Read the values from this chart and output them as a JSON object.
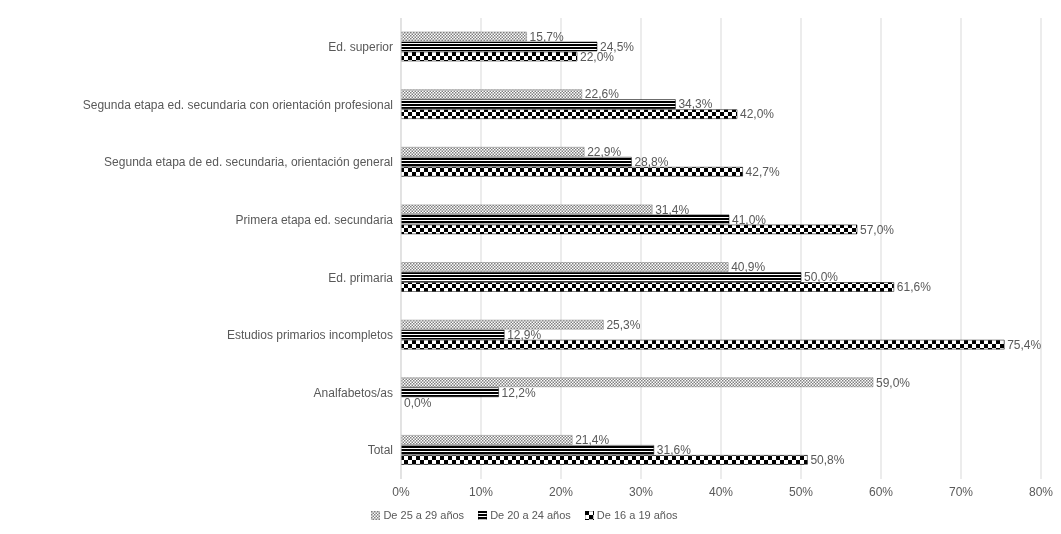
{
  "chart_data": {
    "type": "bar",
    "orientation": "horizontal",
    "categories": [
      "Ed. superior",
      "Segunda etapa ed. secundaria con orientación profesional",
      "Segunda etapa de ed. secundaria, orientación general",
      "Primera etapa ed. secundaria",
      "Ed. primaria",
      "Estudios primarios incompletos",
      "Analfabetos/as",
      "Total"
    ],
    "series": [
      {
        "name": "De 25 a 29 años",
        "color": "#7f7f7f",
        "values": [
          15.7,
          22.6,
          22.9,
          31.4,
          40.9,
          25.3,
          59.0,
          21.4
        ],
        "value_labels": [
          "15,7%",
          "22,6%",
          "22,9%",
          "31,4%",
          "40,9%",
          "25,3%",
          "59,0%",
          "21,4%"
        ]
      },
      {
        "name": "De 20 a 24 años",
        "color": "#000000",
        "values": [
          24.5,
          34.3,
          28.8,
          41.0,
          50.0,
          12.9,
          12.2,
          31.6
        ],
        "value_labels": [
          "24,5%",
          "34,3%",
          "28,8%",
          "41,0%",
          "50,0%",
          "12,9%",
          "12,2%",
          "31,6%"
        ]
      },
      {
        "name": "De 16 a 19 años",
        "color": "#000000",
        "values": [
          22.0,
          42.0,
          42.7,
          57.0,
          61.6,
          75.4,
          0.0,
          50.8
        ],
        "value_labels": [
          "22,0%",
          "42,0%",
          "42,7%",
          "57,0%",
          "61,6%",
          "75,4%",
          "0,0%",
          "50,8%"
        ]
      }
    ],
    "xlim": [
      0,
      80
    ],
    "xticks": [
      {
        "value": 0,
        "label": "0%"
      },
      {
        "value": 10,
        "label": "10%"
      },
      {
        "value": 20,
        "label": "20%"
      },
      {
        "value": 30,
        "label": "30%"
      },
      {
        "value": 40,
        "label": "40%"
      },
      {
        "value": 50,
        "label": "50%"
      },
      {
        "value": 60,
        "label": "60%"
      },
      {
        "value": 70,
        "label": "70%"
      },
      {
        "value": 80,
        "label": "80%"
      }
    ],
    "grid": "x",
    "legend": "bottom"
  }
}
